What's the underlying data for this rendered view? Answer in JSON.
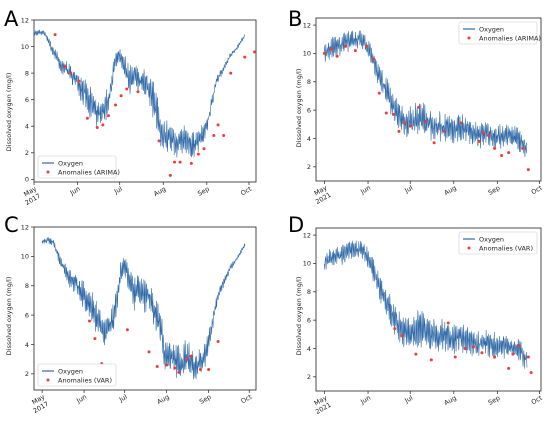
{
  "chart_data": [
    {
      "panel": "A",
      "type": "line",
      "ylabel": "Dissolved oxygen (mg/l)",
      "xlim": [
        0,
        158
      ],
      "ylim": [
        -0.2,
        12
      ],
      "yticks": [
        0,
        2,
        4,
        6,
        8,
        10,
        12
      ],
      "xticks": [
        {
          "x": 0,
          "label": "May",
          "sub": "2017"
        },
        {
          "x": 31,
          "label": "Jun",
          "sub": ""
        },
        {
          "x": 61,
          "label": "Jul",
          "sub": ""
        },
        {
          "x": 92,
          "label": "Aug",
          "sub": ""
        },
        {
          "x": 123,
          "label": "Sep",
          "sub": ""
        },
        {
          "x": 153,
          "label": "Oct",
          "sub": ""
        }
      ],
      "legend": {
        "position": "lower-left",
        "entries": [
          "Oxygen",
          "Anomalies (ARIMA)"
        ]
      },
      "oxygen": {
        "name": "Oxygen",
        "x": [
          0,
          4,
          8,
          10,
          12,
          15,
          18,
          20,
          23,
          26,
          28,
          30,
          33,
          36,
          38,
          41,
          44,
          47,
          50,
          52,
          55,
          58,
          60,
          62,
          64,
          66,
          68,
          70,
          72,
          74,
          76,
          78,
          80,
          82,
          85,
          88,
          90,
          92,
          94,
          96,
          98,
          100,
          103,
          106,
          109,
          112,
          115,
          118,
          121,
          124,
          127,
          130,
          133,
          136,
          139,
          142,
          145,
          148,
          150
        ],
        "y": [
          11.0,
          11.1,
          11.0,
          10.5,
          10.0,
          9.4,
          8.8,
          8.5,
          8.3,
          8.0,
          7.8,
          7.5,
          7.0,
          6.6,
          6.2,
          5.6,
          5.0,
          4.9,
          5.2,
          5.7,
          7.0,
          9.0,
          9.3,
          9.2,
          8.5,
          8.0,
          7.4,
          7.6,
          7.8,
          7.5,
          7.3,
          7.4,
          7.2,
          6.7,
          6.0,
          4.8,
          3.6,
          3.2,
          3.4,
          3.3,
          3.0,
          2.8,
          2.7,
          3.2,
          3.0,
          2.5,
          2.6,
          3.0,
          3.5,
          4.5,
          6.0,
          7.4,
          8.0,
          8.6,
          9.2,
          9.6,
          10.0,
          10.5,
          10.8
        ],
        "spread": [
          0.3,
          0.3,
          0.3,
          0.4,
          0.5,
          0.6,
          0.7,
          0.8,
          0.9,
          1.0,
          1.2,
          1.3,
          1.4,
          1.5,
          1.6,
          1.6,
          1.5,
          1.4,
          1.4,
          1.5,
          1.4,
          1.0,
          0.9,
          1.0,
          1.2,
          1.4,
          1.6,
          1.5,
          1.4,
          1.6,
          1.7,
          1.6,
          1.7,
          1.8,
          1.9,
          1.8,
          1.6,
          1.6,
          1.7,
          1.6,
          1.7,
          1.6,
          1.5,
          1.6,
          1.5,
          1.4,
          1.3,
          1.3,
          1.2,
          1.0,
          0.7,
          0.5,
          0.4,
          0.3,
          0.3,
          0.2,
          0.2,
          0.2,
          0.2
        ]
      },
      "anomalies": {
        "name": "Anomalies (ARIMA)",
        "x": [
          15,
          22,
          26,
          32,
          38,
          45,
          49,
          53,
          58,
          62,
          66,
          74,
          89,
          97,
          100,
          104,
          112,
          117,
          121,
          128,
          131,
          135,
          140,
          150,
          157
        ],
        "y": [
          10.9,
          8.5,
          8.0,
          7.4,
          4.6,
          3.9,
          4.1,
          4.8,
          5.6,
          6.3,
          6.8,
          6.6,
          2.9,
          0.3,
          1.3,
          1.3,
          1.2,
          1.9,
          2.3,
          3.3,
          4.1,
          3.3,
          8.0,
          9.2,
          9.6
        ]
      }
    },
    {
      "panel": "B",
      "type": "line",
      "ylabel": "Dissolved oxygen (mg/l)",
      "xlim": [
        -6,
        154
      ],
      "ylim": [
        1,
        12.5
      ],
      "yticks": [
        2,
        4,
        6,
        8,
        10,
        12
      ],
      "xticks": [
        {
          "x": 0,
          "label": "May",
          "sub": "2021"
        },
        {
          "x": 31,
          "label": "Jun",
          "sub": ""
        },
        {
          "x": 61,
          "label": "Jul",
          "sub": ""
        },
        {
          "x": 92,
          "label": "Aug",
          "sub": ""
        },
        {
          "x": 123,
          "label": "Sep",
          "sub": ""
        },
        {
          "x": 153,
          "label": "Oct",
          "sub": ""
        }
      ],
      "legend": {
        "position": "top-right",
        "entries": [
          "Oxygen",
          "Anomalies (ARIMA)"
        ]
      },
      "oxygen": {
        "name": "Oxygen",
        "x": [
          0,
          4,
          8,
          12,
          16,
          20,
          24,
          28,
          32,
          36,
          40,
          44,
          48,
          52,
          56,
          60,
          64,
          68,
          72,
          76,
          80,
          84,
          88,
          92,
          96,
          100,
          104,
          108,
          112,
          116,
          120,
          124,
          128,
          132,
          136,
          140,
          144
        ],
        "y": [
          10.0,
          10.3,
          10.5,
          10.6,
          10.8,
          11.0,
          11.0,
          10.9,
          10.2,
          9.2,
          8.2,
          7.3,
          6.4,
          5.8,
          5.2,
          5.0,
          5.2,
          5.5,
          5.2,
          5.0,
          5.0,
          4.9,
          4.8,
          4.6,
          4.8,
          4.7,
          4.5,
          4.3,
          4.3,
          4.4,
          4.2,
          4.1,
          4.2,
          4.1,
          4.0,
          3.8,
          3.2
        ],
        "spread": [
          0.8,
          1.0,
          1.0,
          1.1,
          1.0,
          0.9,
          0.9,
          0.9,
          1.0,
          1.1,
          1.3,
          1.4,
          1.5,
          1.5,
          1.5,
          1.6,
          1.7,
          1.8,
          1.7,
          1.6,
          1.6,
          1.5,
          1.4,
          1.4,
          1.3,
          1.4,
          1.3,
          1.3,
          1.3,
          1.2,
          1.3,
          1.3,
          1.3,
          1.2,
          1.2,
          1.3,
          1.0
        ]
      },
      "anomalies": {
        "name": "Anomalies (ARIMA)",
        "x": [
          0,
          5,
          9,
          15,
          22,
          30,
          35,
          39,
          44,
          49,
          53,
          57,
          61,
          67,
          72,
          78,
          85,
          97,
          110,
          113,
          117,
          121,
          126,
          131,
          141,
          145
        ],
        "y": [
          10.0,
          10.3,
          9.8,
          10.5,
          10.2,
          10.5,
          9.6,
          7.2,
          5.8,
          5.7,
          4.5,
          5.1,
          4.9,
          6.2,
          5.2,
          3.7,
          4.5,
          5.1,
          3.8,
          4.4,
          4.2,
          3.3,
          2.8,
          3.0,
          3.3,
          1.8
        ]
      }
    },
    {
      "panel": "C",
      "type": "line",
      "ylabel": "Dissolved oxygen (mg/l)",
      "xlim": [
        -6,
        158
      ],
      "ylim": [
        0.9,
        12
      ],
      "yticks": [
        2,
        4,
        6,
        8,
        10,
        12
      ],
      "xticks": [
        {
          "x": 0,
          "label": "May",
          "sub": "2017"
        },
        {
          "x": 31,
          "label": "Jun",
          "sub": ""
        },
        {
          "x": 61,
          "label": "Jul",
          "sub": ""
        },
        {
          "x": 92,
          "label": "Aug",
          "sub": ""
        },
        {
          "x": 123,
          "label": "Sep",
          "sub": ""
        },
        {
          "x": 153,
          "label": "Oct",
          "sub": ""
        }
      ],
      "legend": {
        "position": "lower-left",
        "entries": [
          "Oxygen",
          "Anomalies (VAR)"
        ]
      },
      "oxygen": {
        "name": "Oxygen",
        "x": [
          0,
          4,
          8,
          10,
          12,
          15,
          18,
          20,
          23,
          26,
          28,
          30,
          33,
          36,
          38,
          41,
          44,
          47,
          50,
          52,
          55,
          58,
          60,
          62,
          64,
          66,
          68,
          70,
          72,
          74,
          76,
          78,
          80,
          82,
          85,
          88,
          90,
          92,
          94,
          96,
          98,
          100,
          103,
          106,
          109,
          112,
          115,
          118,
          121,
          124,
          127,
          130,
          133,
          136,
          139,
          142,
          145,
          148,
          150
        ],
        "y": [
          11.0,
          11.1,
          11.0,
          10.5,
          10.0,
          9.4,
          8.8,
          8.5,
          8.3,
          8.0,
          7.8,
          7.5,
          7.0,
          6.6,
          6.2,
          5.6,
          5.0,
          4.9,
          5.2,
          5.7,
          7.0,
          9.0,
          9.3,
          9.2,
          8.5,
          8.0,
          7.4,
          7.6,
          7.8,
          7.5,
          7.3,
          7.4,
          7.2,
          6.7,
          6.0,
          4.8,
          3.6,
          3.2,
          3.4,
          3.3,
          3.0,
          2.8,
          2.7,
          3.2,
          3.0,
          2.5,
          2.6,
          3.0,
          3.5,
          4.5,
          6.0,
          7.4,
          8.0,
          8.6,
          9.2,
          9.6,
          10.0,
          10.5,
          10.8
        ],
        "spread": [
          0.3,
          0.3,
          0.3,
          0.4,
          0.5,
          0.6,
          0.7,
          0.8,
          0.9,
          1.0,
          1.2,
          1.3,
          1.4,
          1.5,
          1.6,
          1.6,
          1.5,
          1.4,
          1.4,
          1.5,
          1.4,
          1.0,
          0.9,
          1.0,
          1.2,
          1.4,
          1.6,
          1.5,
          1.4,
          1.6,
          1.7,
          1.6,
          1.7,
          1.8,
          1.9,
          1.8,
          1.6,
          1.6,
          1.7,
          1.6,
          1.7,
          1.6,
          1.5,
          1.6,
          1.5,
          1.4,
          1.3,
          1.3,
          1.2,
          1.0,
          0.7,
          0.5,
          0.4,
          0.3,
          0.3,
          0.2,
          0.2,
          0.2,
          0.2
        ]
      },
      "anomalies": {
        "name": "Anomalies (VAR)",
        "x": [
          35,
          39,
          44,
          63,
          79,
          85,
          92,
          98,
          101,
          107,
          110,
          117,
          123,
          130
        ],
        "y": [
          5.6,
          4.4,
          2.7,
          5.0,
          3.5,
          2.5,
          2.6,
          2.4,
          2.1,
          3.0,
          3.2,
          2.3,
          2.3,
          4.2
        ]
      }
    },
    {
      "panel": "D",
      "type": "line",
      "ylabel": "Dissolved oxygen (mg/l)",
      "xlim": [
        -6,
        154
      ],
      "ylim": [
        1,
        12.5
      ],
      "yticks": [
        2,
        4,
        6,
        8,
        10,
        12
      ],
      "xticks": [
        {
          "x": 0,
          "label": "May",
          "sub": "2021"
        },
        {
          "x": 31,
          "label": "Jun",
          "sub": ""
        },
        {
          "x": 61,
          "label": "Jul",
          "sub": ""
        },
        {
          "x": 92,
          "label": "Aug",
          "sub": ""
        },
        {
          "x": 123,
          "label": "Sep",
          "sub": ""
        },
        {
          "x": 153,
          "label": "Oct",
          "sub": ""
        }
      ],
      "legend": {
        "position": "top-right",
        "entries": [
          "Oxygen",
          "Anomalies (VAR)"
        ]
      },
      "oxygen": {
        "name": "Oxygen",
        "x": [
          0,
          4,
          8,
          12,
          16,
          20,
          24,
          28,
          32,
          36,
          40,
          44,
          48,
          52,
          56,
          60,
          64,
          68,
          72,
          76,
          80,
          84,
          88,
          92,
          96,
          100,
          104,
          108,
          112,
          116,
          120,
          124,
          128,
          132,
          136,
          140,
          144
        ],
        "y": [
          10.0,
          10.3,
          10.5,
          10.6,
          10.8,
          11.0,
          11.0,
          10.9,
          10.2,
          9.2,
          8.2,
          7.3,
          6.4,
          5.8,
          5.2,
          5.0,
          5.2,
          5.5,
          5.2,
          5.0,
          5.0,
          4.9,
          4.8,
          4.6,
          4.8,
          4.7,
          4.5,
          4.3,
          4.3,
          4.4,
          4.2,
          4.1,
          4.2,
          4.1,
          4.0,
          3.8,
          3.2
        ],
        "spread": [
          0.8,
          1.0,
          1.0,
          1.1,
          1.0,
          0.9,
          0.9,
          0.9,
          1.0,
          1.1,
          1.3,
          1.4,
          1.5,
          1.5,
          1.5,
          1.6,
          1.7,
          1.8,
          1.7,
          1.6,
          1.6,
          1.5,
          1.4,
          1.4,
          1.3,
          1.4,
          1.3,
          1.3,
          1.3,
          1.2,
          1.3,
          1.3,
          1.3,
          1.2,
          1.2,
          1.3,
          1.0
        ]
      },
      "anomalies": {
        "name": "Anomalies (VAR)",
        "x": [
          50,
          55,
          65,
          76,
          88,
          93,
          100,
          106,
          112,
          121,
          131,
          134,
          138,
          145,
          147
        ],
        "y": [
          5.4,
          4.9,
          3.6,
          3.2,
          5.8,
          3.4,
          4.0,
          4.1,
          3.7,
          3.4,
          2.6,
          3.6,
          4.2,
          3.4,
          2.3
        ]
      }
    }
  ],
  "colors": {
    "line": "#2f69a7",
    "anomaly": "#ee3b3b"
  },
  "panels": [
    {
      "label": "A",
      "ylabel": "Dissolved oxygen (mg/l)"
    },
    {
      "label": "B",
      "ylabel": "Dissolved oxygen (mg/l)"
    },
    {
      "label": "C",
      "ylabel": "Dissolved oxygen (mg/l)"
    },
    {
      "label": "D",
      "ylabel": "Dissolved oxygen (mg/l)"
    }
  ]
}
